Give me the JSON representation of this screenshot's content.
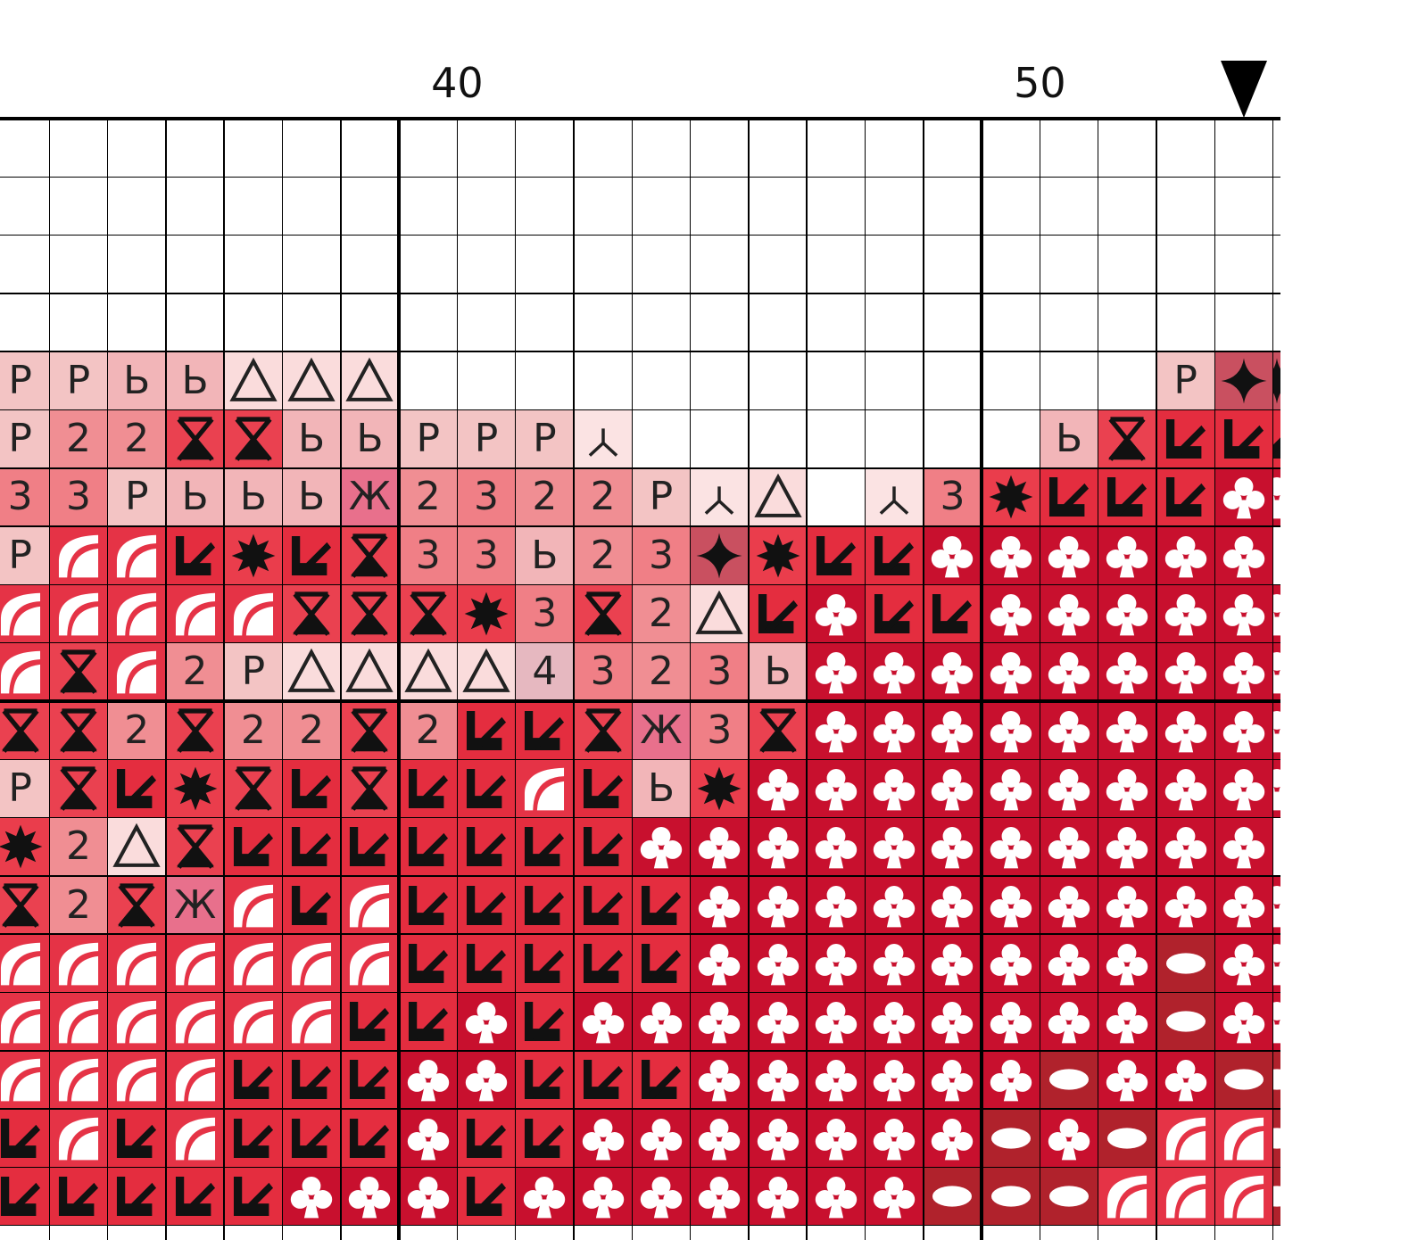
{
  "chart": {
    "column_labels": [
      {
        "text": "40",
        "column": 7
      },
      {
        "text": "50",
        "column": 17
      }
    ],
    "marker_icon": "black-triangle-down-icon",
    "marker_column": 21
  },
  "legend": {
    "R": {
      "color": "#f3c4c4",
      "text": "Р",
      "ink": "#222222"
    },
    "b": {
      "color": "#f2b5b8",
      "text": "Ь",
      "ink": "#222222"
    },
    "2": {
      "color": "#f08e93",
      "text": "2",
      "ink": "#222222"
    },
    "3": {
      "color": "#f07f86",
      "text": "3",
      "ink": "#222222"
    },
    "Z": {
      "color": "#e8708c",
      "text": "Ж",
      "ink": "#222222"
    },
    "4": {
      "color": "#e6b8c0",
      "text": "4",
      "ink": "#222222"
    },
    "T": {
      "color": "#fadcdc",
      "icon": "triangle-outline-icon",
      "ink": "#222222"
    },
    "Y": {
      "color": "#fbe3e3",
      "icon": "three-prong-icon",
      "ink": "#222222"
    },
    "X": {
      "color": "#ea4150",
      "icon": "hourglass-x-icon",
      "ink": "#111111"
    },
    "K": {
      "color": "#e42d3f",
      "icon": "corner-arrow-icon",
      "ink": "#111111"
    },
    "S": {
      "color": "#ea3d4c",
      "icon": "starburst-icon",
      "ink": "#111111"
    },
    "D": {
      "color": "#c95060",
      "icon": "four-point-star-icon",
      "ink": "#111111"
    },
    "A": {
      "color": "#e53346",
      "icon": "quarter-arc-icon",
      "ink": "#ffffff"
    },
    "C": {
      "color": "#c8102e",
      "icon": "club-icon",
      "ink": "#ffffff"
    },
    "O": {
      "color": "#b0222c",
      "icon": "oval-icon",
      "ink": "#ffffff"
    },
    ".": {
      "color": "#ffffff"
    }
  },
  "grid_rows": [
    "......................",
    "......................",
    "......................",
    "......................",
    "RRbbTTT.............RDD",
    "R22XXbbRRRY.......bXKKK",
    "33RbbbZ2322RYT.Y3SKKKCC",
    "RAAKSKX33b23DSKKCCCCCC",
    "AAAAAXXXS3X2TKCKKCCCCCC",
    "AXA2RTTTT4323bCCCCCCCCC",
    "XX2X22X2KKXZ3XCCCCCCCCC",
    "RXKSXKXKKAKbSCCCCCCCCCC",
    "S2TXKKKKKKKCCCCCCCCCCC",
    "X2XZAKAKKKKKCCCCCCCCCCC",
    "AAAAAAAKKKKKCCCCCCCCOCC",
    "AAAAAAKKCKCCCCCCCCCCOCC",
    "AAAAKKKCCKKKCCCCCCOCCOOO",
    "KAKAKKKCKKCCCCCCCOCOAAO",
    "KKKKKCCCKCCCCCCCOOOAAAO"
  ]
}
